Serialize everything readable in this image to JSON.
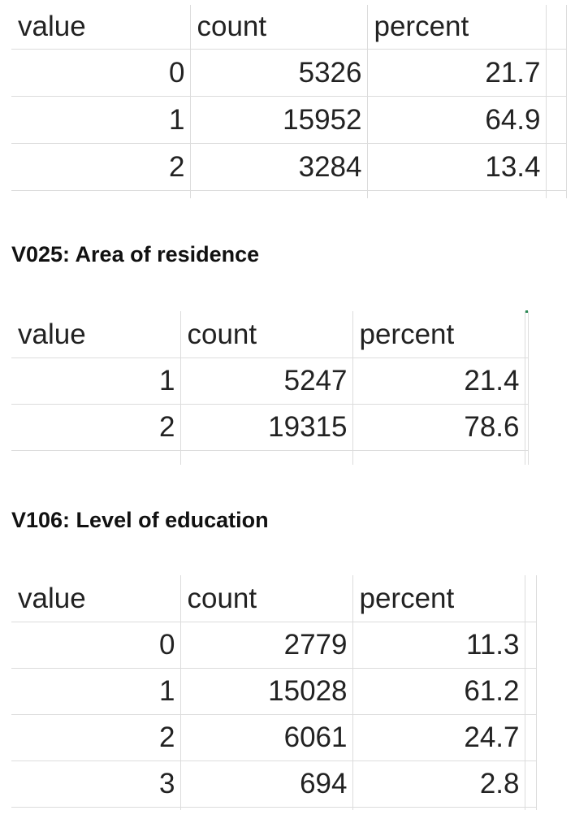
{
  "tables": [
    {
      "header": {
        "value": "value",
        "count": "count",
        "percent": "percent"
      },
      "rows": [
        {
          "value": "0",
          "count": "5326",
          "percent": "21.7"
        },
        {
          "value": "1",
          "count": "15952",
          "percent": "64.9"
        },
        {
          "value": "2",
          "count": "3284",
          "percent": "13.4"
        }
      ]
    },
    {
      "title": "V025: Area of residence",
      "header": {
        "value": "value",
        "count": "count",
        "percent": "percent"
      },
      "rows": [
        {
          "value": "1",
          "count": "5247",
          "percent": "21.4"
        },
        {
          "value": "2",
          "count": "19315",
          "percent": "78.6"
        }
      ]
    },
    {
      "title": "V106: Level of education",
      "header": {
        "value": "value",
        "count": "count",
        "percent": "percent"
      },
      "rows": [
        {
          "value": "0",
          "count": "2779",
          "percent": "11.3"
        },
        {
          "value": "1",
          "count": "15028",
          "percent": "61.2"
        },
        {
          "value": "2",
          "count": "6061",
          "percent": "24.7"
        },
        {
          "value": "3",
          "count": "694",
          "percent": "2.8"
        }
      ]
    }
  ]
}
